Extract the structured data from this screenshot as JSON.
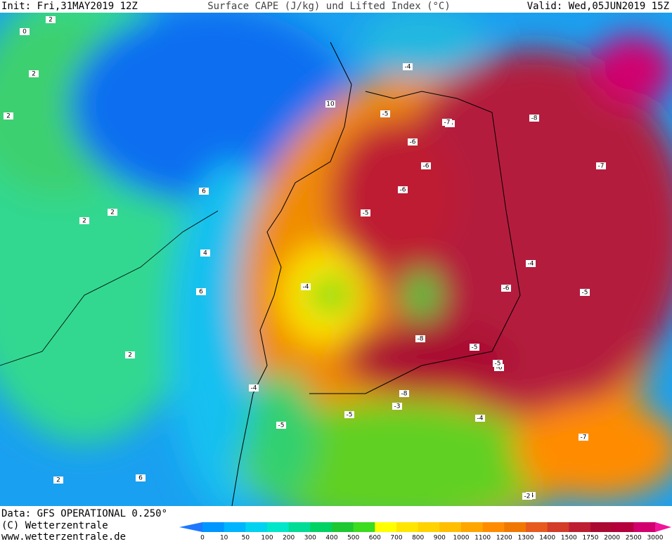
{
  "header": {
    "init": "Init: Fri,31MAY2019 12Z",
    "title": "Surface CAPE (J/kg) und Lifted Index (°C)",
    "valid": "Valid: Wed,05JUN2019 15Z"
  },
  "footer": {
    "data": "Data: GFS OPERATIONAL 0.250°",
    "copyright": "(C) Wetterzentrale",
    "url": "www.wetterzentrale.de"
  },
  "colorbar": {
    "labels": [
      "0",
      "10",
      "50",
      "100",
      "200",
      "300",
      "400",
      "500",
      "600",
      "700",
      "800",
      "900",
      "1000",
      "1100",
      "1200",
      "1300",
      "1400",
      "1500",
      "1750",
      "2000",
      "2500",
      "3000"
    ],
    "colors": [
      "#1e78ff",
      "#0096ff",
      "#00b4ff",
      "#00d2f0",
      "#00e6c8",
      "#00dc96",
      "#00d264",
      "#1ec832",
      "#3cdc1e",
      "#ffff00",
      "#ffe600",
      "#ffd200",
      "#ffbe00",
      "#ffa500",
      "#ff8c00",
      "#f07800",
      "#e65a1e",
      "#d23c28",
      "#be1e32",
      "#aa0a32",
      "#b4003c",
      "#d2006e",
      "#f0149b"
    ]
  },
  "map": {
    "labels": [
      "2",
      "0",
      "2",
      "2",
      "10",
      "6",
      "2",
      "2",
      "4",
      "6",
      "2",
      "2",
      "-5",
      "-4",
      "-5",
      "-6",
      "-7",
      "-6",
      "-8",
      "-5",
      "-6",
      "-7",
      "-4",
      "-5",
      "-6",
      "-8",
      "-5",
      "-4",
      "-3",
      "-5",
      "-4",
      "-7",
      "-6",
      "-4",
      "-5",
      "-2",
      "6",
      "-5",
      "-4",
      "-8"
    ]
  }
}
